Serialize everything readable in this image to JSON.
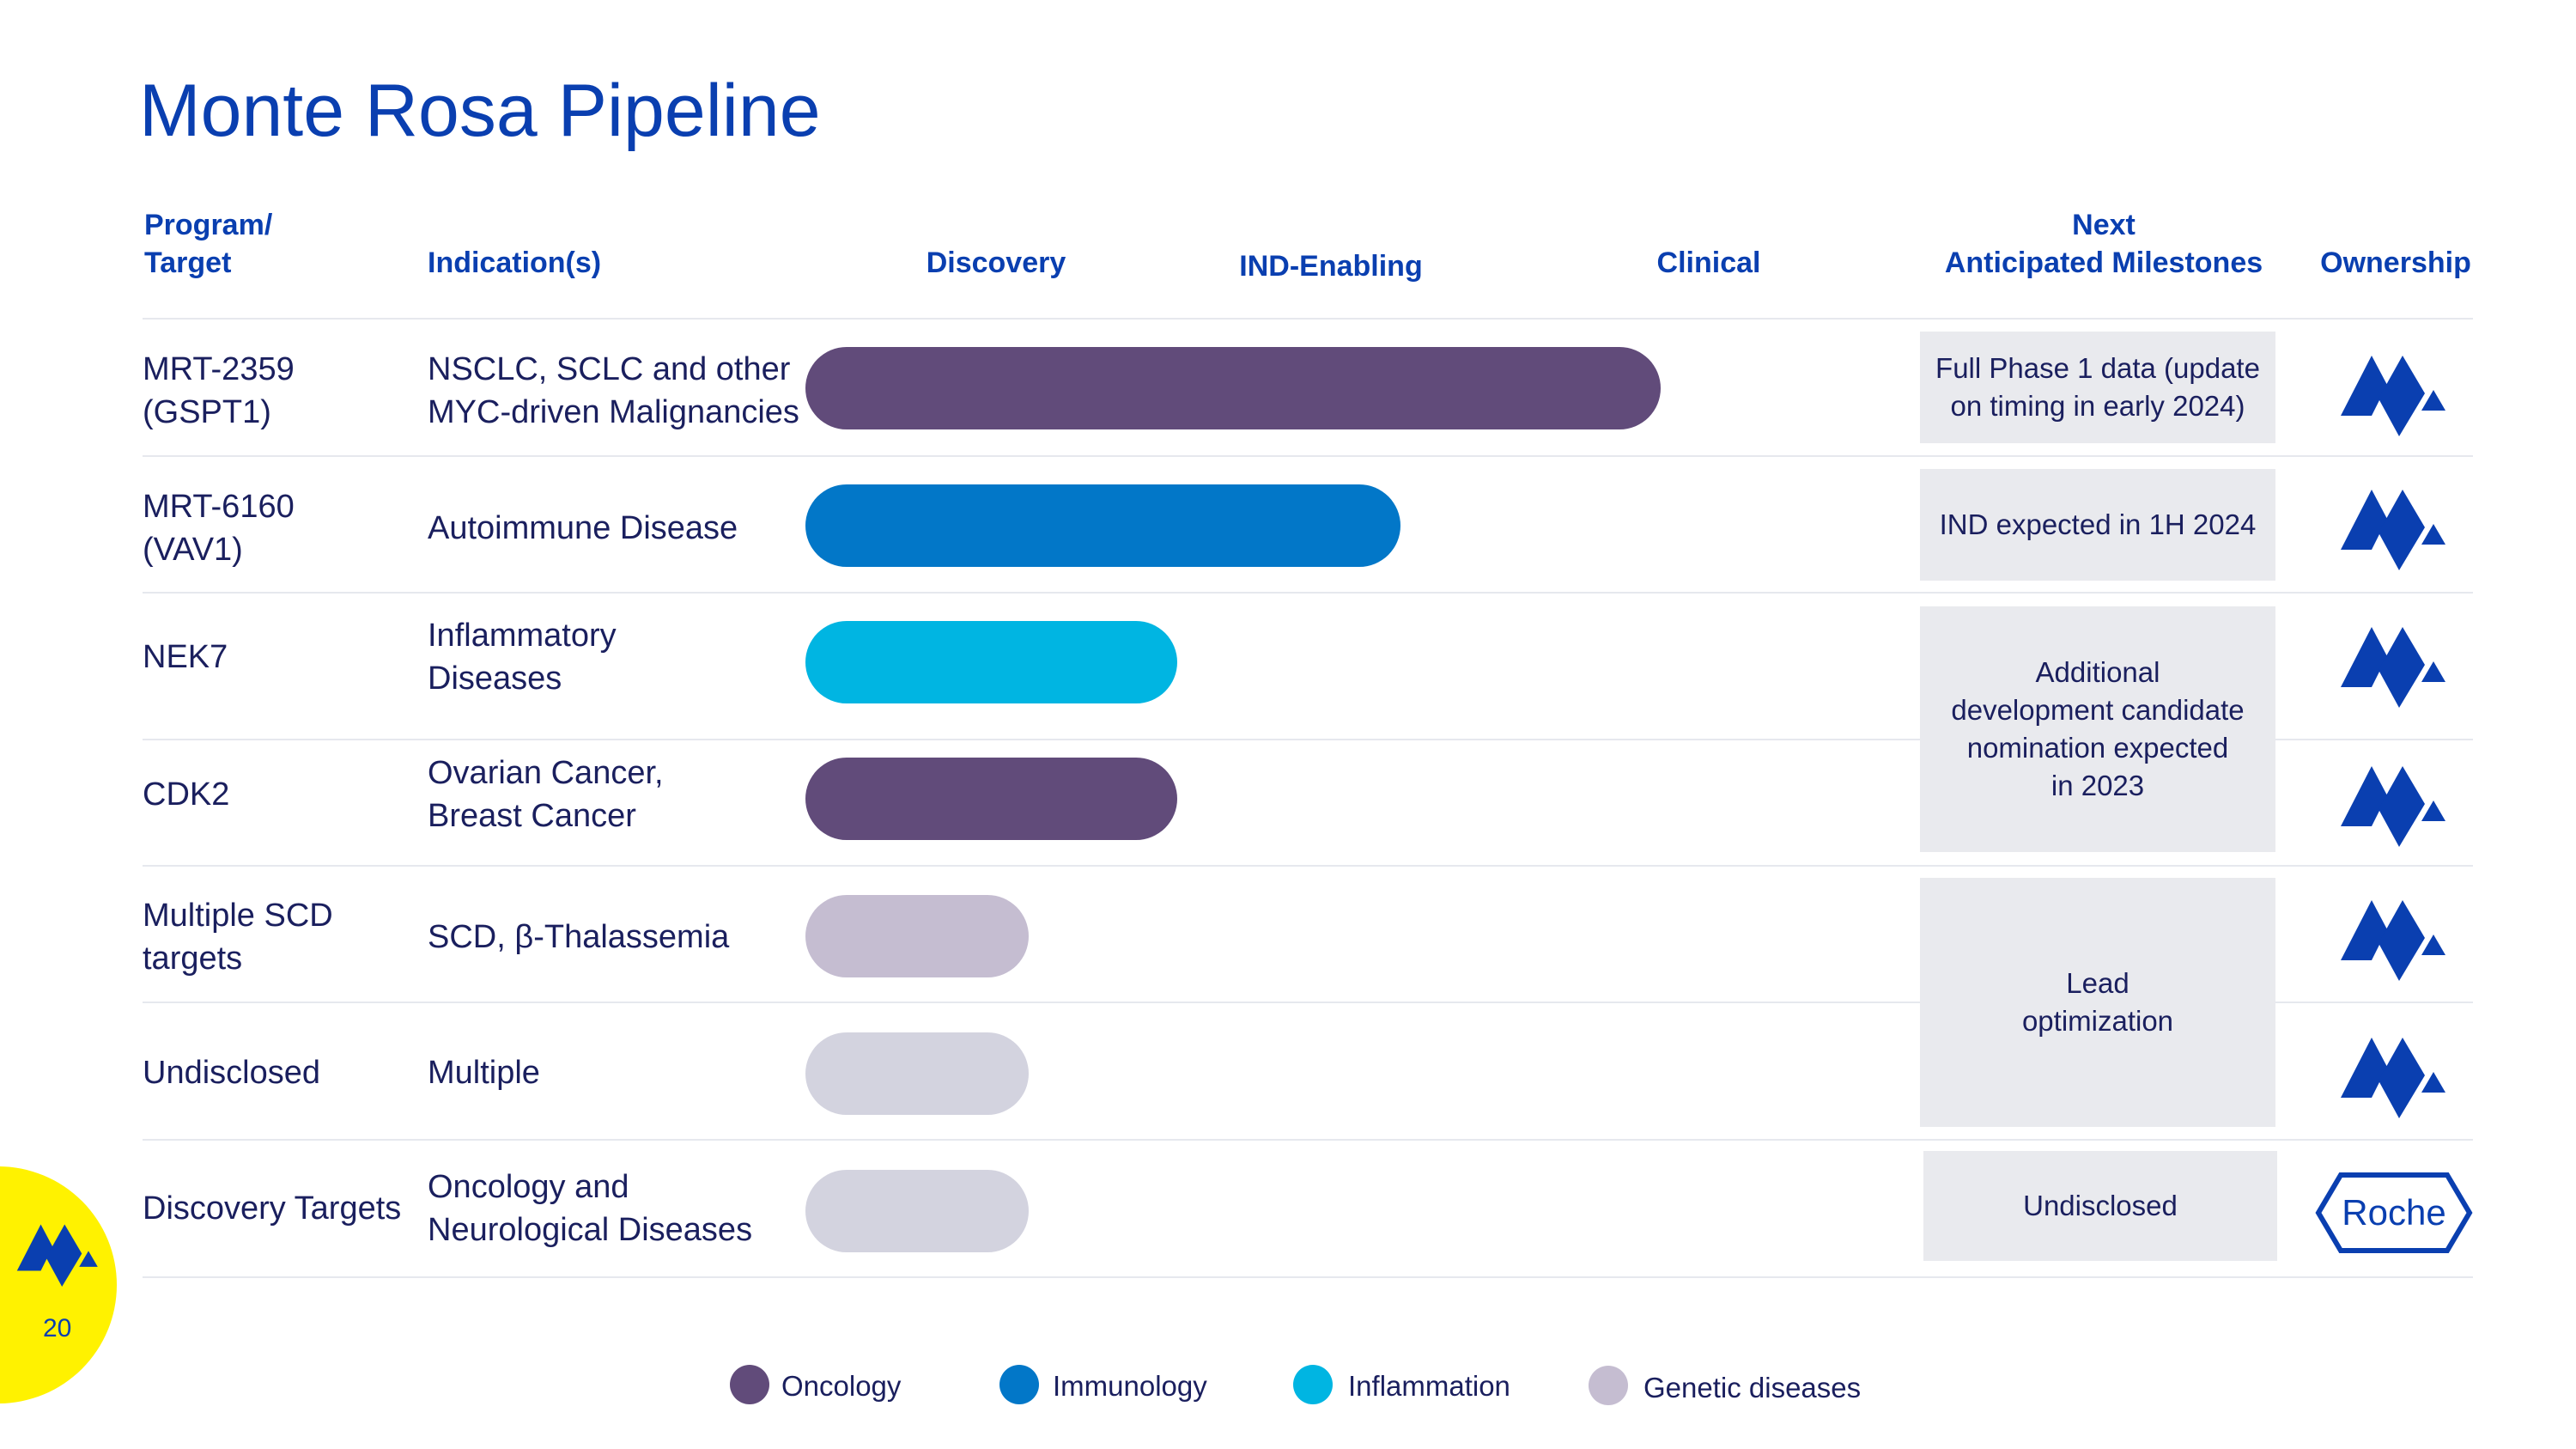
{
  "title": "Monte Rosa Pipeline",
  "page_number": "20",
  "headers": {
    "program": "Program/\nTarget",
    "indication": "Indication(s)",
    "discovery": "Discovery",
    "ind": "IND-Enabling",
    "clinical": "Clinical",
    "milestones": "Next\nAnticipated Milestones",
    "ownership": "Ownership"
  },
  "colors": {
    "title": "#0a3fb0",
    "oncology": "#614b7a",
    "immunology": "#0277c8",
    "inflammation": "#00b5e2",
    "genetic": "#c5bdd1",
    "undisclosed": "#d3d3df",
    "milestone_box": "#e9eaee",
    "logo": "#0a3fb0",
    "badge": "#fff200"
  },
  "programs": [
    {
      "name": "MRT-2359\n(GSPT1)",
      "indication": "NSCLC, SCLC and other\nMYC-driven Malignancies"
    },
    {
      "name": "MRT-6160\n(VAV1)",
      "indication": "Autoimmune Disease"
    },
    {
      "name": "NEK7",
      "indication": "Inflammatory\nDiseases"
    },
    {
      "name": "CDK2",
      "indication": "Ovarian Cancer,\nBreast Cancer"
    },
    {
      "name": "Multiple SCD\ntargets",
      "indication": "SCD, β-Thalassemia"
    },
    {
      "name": "Undisclosed",
      "indication": "Multiple"
    },
    {
      "name": "Discovery Targets",
      "indication": "Oncology and\nNeurological Diseases"
    }
  ],
  "milestones": [
    {
      "text": "Full Phase 1 data (update\non timing in early 2024)"
    },
    {
      "text": "IND expected in 1H 2024"
    },
    {
      "text": "Additional\ndevelopment candidate\nnomination expected\nin 2023"
    },
    {
      "text": "Lead\noptimization"
    },
    {
      "text": "Undisclosed"
    }
  ],
  "ownership": [
    {
      "icon": "monte-rosa-logo-icon"
    },
    {
      "icon": "monte-rosa-logo-icon"
    },
    {
      "icon": "monte-rosa-logo-icon"
    },
    {
      "icon": "monte-rosa-logo-icon"
    },
    {
      "icon": "monte-rosa-logo-icon"
    },
    {
      "icon": "monte-rosa-logo-icon"
    },
    {
      "icon": "roche-logo-icon",
      "text": "Roche"
    }
  ],
  "legend": [
    {
      "label": "Oncology",
      "color": "#614b7a"
    },
    {
      "label": "Immunology",
      "color": "#0277c8"
    },
    {
      "label": "Inflammation",
      "color": "#00b5e2"
    },
    {
      "label": "Genetic diseases",
      "color": "#c5bdd1"
    }
  ],
  "chart_data": {
    "type": "bar",
    "orientation": "horizontal",
    "title": "Monte Rosa Pipeline",
    "stages": [
      "Discovery",
      "IND-Enabling",
      "Clinical"
    ],
    "xlim": [
      0,
      3.25
    ],
    "categories": [
      "MRT-2359 (GSPT1)",
      "MRT-6160 (VAV1)",
      "NEK7",
      "CDK2",
      "Multiple SCD targets",
      "Undisclosed",
      "Discovery Targets"
    ],
    "values": [
      2.3,
      1.6,
      1.0,
      1.0,
      0.6,
      0.6,
      0.6
    ],
    "series_by_bar": [
      "Oncology",
      "Immunology",
      "Inflammation",
      "Oncology",
      "Genetic diseases",
      "Undisclosed",
      "Undisclosed"
    ]
  }
}
